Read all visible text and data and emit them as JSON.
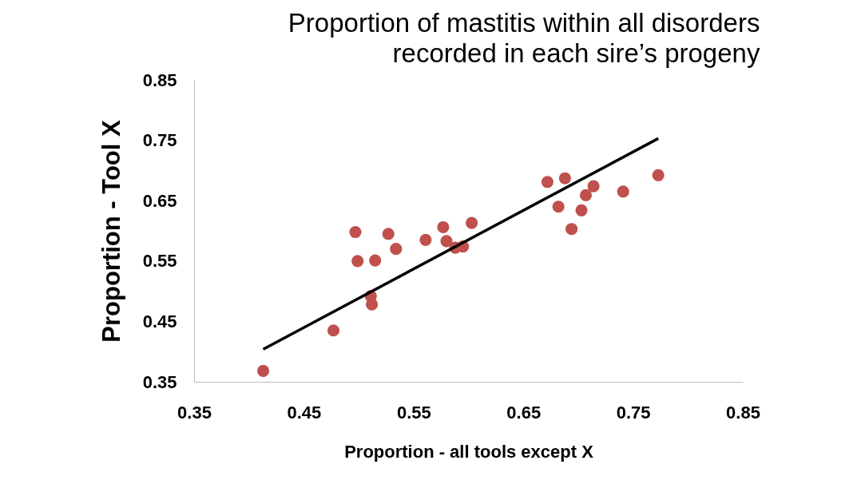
{
  "chart_data": {
    "type": "scatter",
    "title": [
      "Proportion of mastitis within all disorders",
      "recorded in each sire’s progeny"
    ],
    "xlabel": "Proportion - all tools except X",
    "ylabel": "Proportion - Tool X",
    "xlim": [
      0.35,
      0.85
    ],
    "ylim": [
      0.35,
      0.85
    ],
    "xticks": [
      0.35,
      0.45,
      0.55,
      0.65,
      0.75,
      0.85
    ],
    "yticks": [
      0.35,
      0.45,
      0.55,
      0.65,
      0.75,
      0.85
    ],
    "grid": false,
    "series": [
      {
        "color": "#c0504d",
        "marker": "circle",
        "x": [
          0.413,
          0.477,
          0.497,
          0.499,
          0.515,
          0.511,
          0.512,
          0.527,
          0.534,
          0.561,
          0.577,
          0.58,
          0.588,
          0.595,
          0.603,
          0.672,
          0.688,
          0.682,
          0.694,
          0.703,
          0.707,
          0.714,
          0.741,
          0.773
        ],
        "values": [
          0.368,
          0.435,
          0.598,
          0.55,
          0.551,
          0.492,
          0.478,
          0.595,
          0.57,
          0.585,
          0.606,
          0.583,
          0.572,
          0.574,
          0.613,
          0.681,
          0.687,
          0.64,
          0.603,
          0.634,
          0.659,
          0.674,
          0.665,
          0.692
        ]
      },
      {
        "type": "line",
        "marker": "none",
        "color": "#000000",
        "line_style": "solid",
        "x": [
          0.413,
          0.773
        ],
        "values": [
          0.404,
          0.753
        ]
      }
    ]
  }
}
